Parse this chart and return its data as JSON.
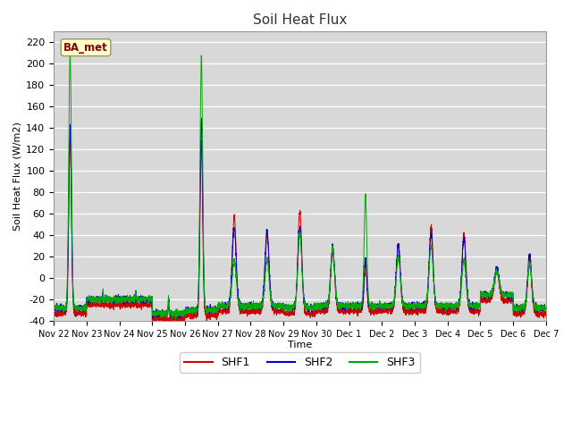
{
  "title": "Soil Heat Flux",
  "ylabel": "Soil Heat Flux (W/m2)",
  "xlabel": "Time",
  "ylim": [
    -40,
    230
  ],
  "yticks": [
    -40,
    -20,
    0,
    20,
    40,
    60,
    80,
    100,
    120,
    140,
    160,
    180,
    200,
    220
  ],
  "xtick_labels": [
    "Nov 22",
    "Nov 23",
    "Nov 24",
    "Nov 25",
    "Nov 26",
    "Nov 27",
    "Nov 28",
    "Nov 29",
    "Nov 30",
    "Dec 1",
    "Dec 2",
    "Dec 3",
    "Dec 4",
    "Dec 5",
    "Dec 6",
    "Dec 7"
  ],
  "colors": {
    "SHF1": "#cc0000",
    "SHF2": "#0000cc",
    "SHF3": "#00aa00"
  },
  "station_label": "BA_met",
  "station_label_color": "#880000",
  "plot_bg": "#d8d8d8",
  "fig_bg": "#ffffff",
  "n_days": 15,
  "pts_per_day": 288
}
